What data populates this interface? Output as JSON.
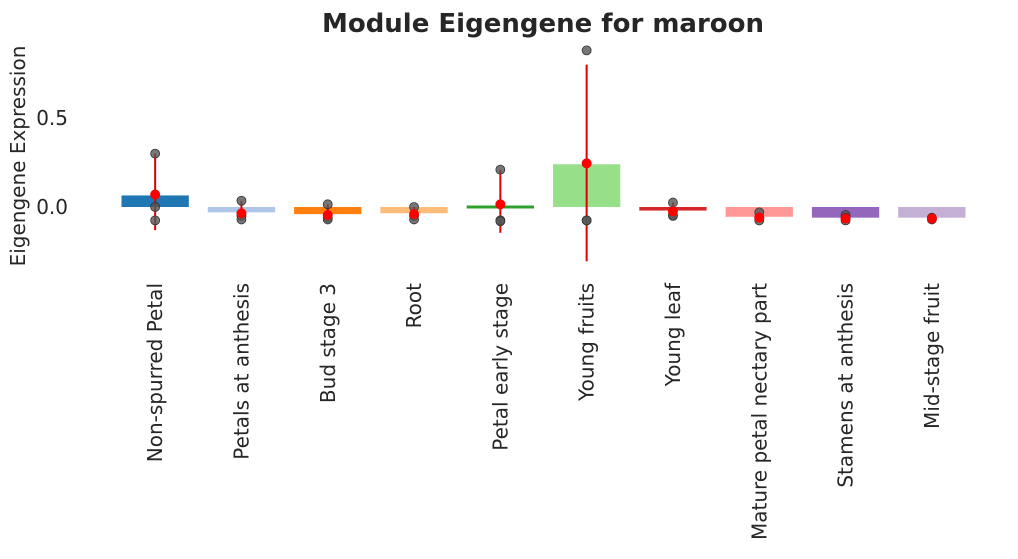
{
  "chart_data": {
    "type": "bar",
    "title": "Module Eigengene for maroon",
    "xlabel": "",
    "ylabel": "Eigengene Expression",
    "ylim": [
      -0.35,
      0.95
    ],
    "yticks": [
      0.0,
      0.5
    ],
    "ytick_labels": [
      "0.0",
      "0.5"
    ],
    "grid": false,
    "categories": [
      "Non-spurred Petal",
      "Petals at anthesis",
      "Bud stage 3",
      "Root",
      "Petal early stage",
      "Young fruits",
      "Young leaf",
      "Mature petal nectary part",
      "Stamens at anthesis",
      "Mid-stage fruit"
    ],
    "values": [
      0.065,
      -0.03,
      -0.04,
      -0.035,
      0.01,
      0.24,
      -0.02,
      -0.055,
      -0.06,
      -0.06
    ],
    "bar_colors": [
      "#1f77b4",
      "#aec7e8",
      "#ff7f0e",
      "#ffbb78",
      "#2ca02c",
      "#98df8a",
      "#d62728",
      "#ff9896",
      "#9467bd",
      "#c5b0d5"
    ],
    "means": [
      0.07,
      -0.035,
      -0.045,
      -0.04,
      0.015,
      0.245,
      -0.025,
      -0.06,
      -0.065,
      -0.065
    ],
    "error_low": [
      -0.13,
      -0.07,
      -0.07,
      -0.07,
      -0.145,
      -0.305,
      -0.05,
      -0.075,
      -0.075,
      -0.07
    ],
    "error_high": [
      0.3,
      0.035,
      0.015,
      0.0,
      0.21,
      0.8,
      0.025,
      -0.03,
      -0.04,
      -0.06
    ],
    "points": [
      [
        0.3,
        0.0,
        -0.075
      ],
      [
        0.035,
        -0.05,
        -0.07
      ],
      [
        0.015,
        -0.06,
        -0.07
      ],
      [
        0.0,
        -0.05,
        -0.07
      ],
      [
        0.21,
        -0.075,
        -0.08
      ],
      [
        0.88,
        -0.075,
        -0.075
      ],
      [
        0.025,
        -0.045,
        -0.05
      ],
      [
        -0.03,
        -0.06,
        -0.075
      ],
      [
        -0.045,
        -0.06,
        -0.075
      ],
      [
        -0.06,
        -0.065,
        -0.07
      ]
    ],
    "point_color": "#555555",
    "mean_color": "#ff0000",
    "error_color": "#dd0000"
  }
}
